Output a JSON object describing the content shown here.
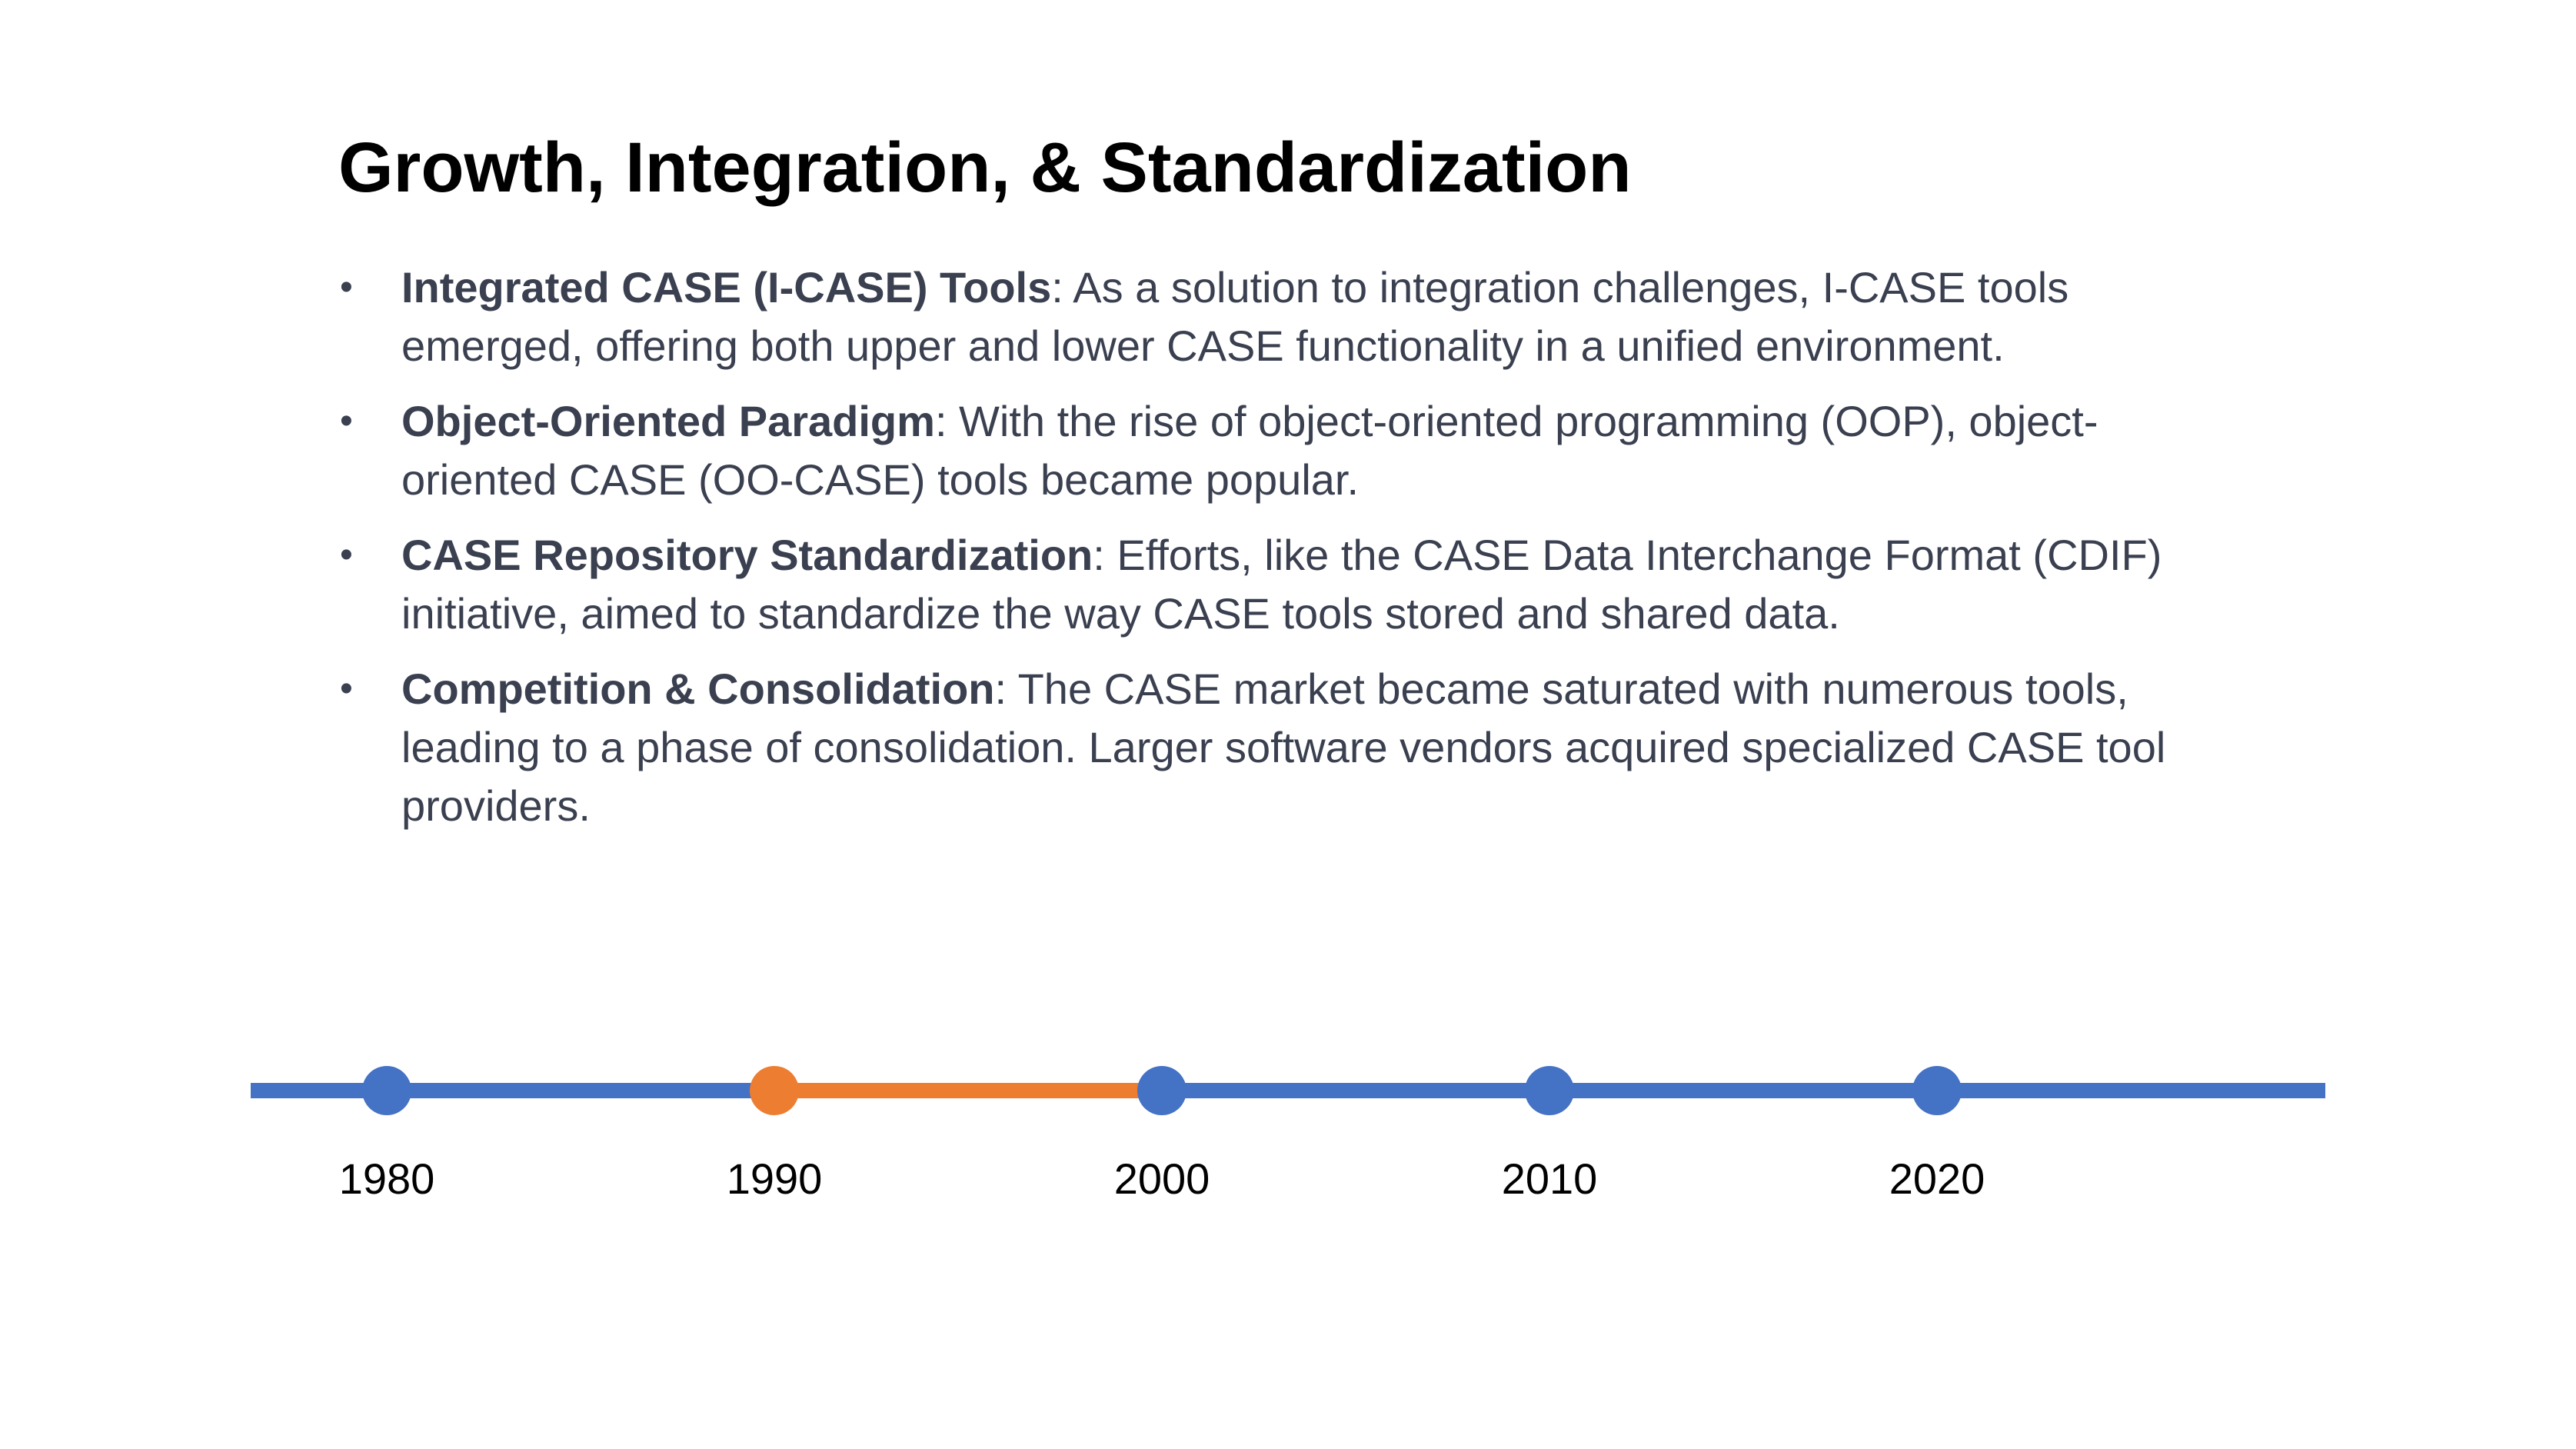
{
  "slide": {
    "title": "Growth, Integration, & Standardization",
    "bullets": [
      {
        "term": "Integrated CASE (I-CASE) Tools",
        "text": ": As a solution to integration challenges, I-CASE tools emerged, offering both upper and lower CASE functionality in a unified environment."
      },
      {
        "term": "Object-Oriented Paradigm",
        "text": ": With the rise of object-oriented programming (OOP), object-oriented CASE (OO-CASE) tools became popular."
      },
      {
        "term": "CASE Repository Standardization",
        "text": ": Efforts, like the CASE Data Interchange Format (CDIF) initiative, aimed to standardize the way CASE tools stored and shared data."
      },
      {
        "term": "Competition & Consolidation",
        "text": ": The CASE market became saturated with numerous tools, leading to a phase of consolidation. Larger software vendors acquired specialized CASE tool providers."
      }
    ],
    "bullet_glyph": "•"
  },
  "timeline": {
    "years": [
      "1980",
      "1990",
      "2000",
      "2010",
      "2020"
    ],
    "highlight_range": [
      "1990",
      "2000"
    ],
    "colors": {
      "base": "#4472c4",
      "highlight": "#ed7d31"
    }
  }
}
